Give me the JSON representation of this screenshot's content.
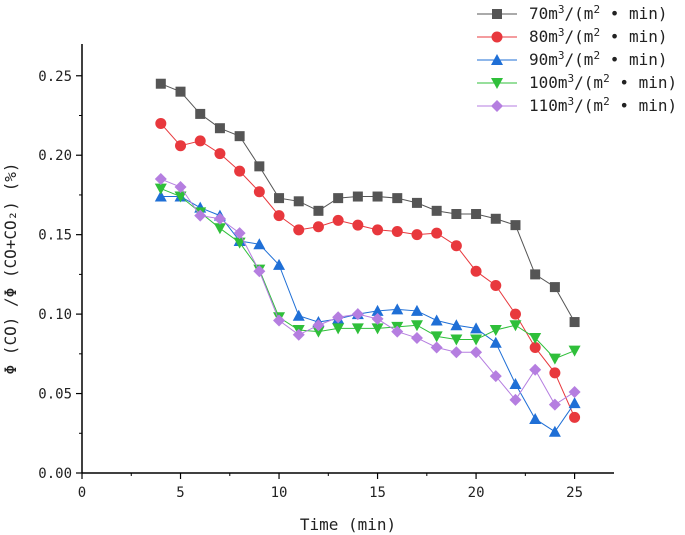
{
  "chart_data": {
    "type": "line",
    "title": "",
    "xlabel": "Time (min)",
    "ylabel": "Φ (CO) /Φ (CO+CO₂) (%)",
    "xlim": [
      0,
      27
    ],
    "ylim": [
      0,
      0.27
    ],
    "xticks": [
      0,
      5,
      10,
      15,
      20,
      25
    ],
    "xtick_labels": [
      "0",
      "5",
      "10",
      "15",
      "20",
      "25"
    ],
    "yticks": [
      0,
      0.05,
      0.1,
      0.15,
      0.2,
      0.25
    ],
    "ytick_labels": [
      "0.00",
      "0.05",
      "0.10",
      "0.15",
      "0.20",
      "0.25"
    ],
    "grid": false,
    "legend_position": "top-right",
    "x": [
      4,
      5,
      6,
      7,
      8,
      9,
      10,
      11,
      12,
      13,
      14,
      15,
      16,
      17,
      18,
      19,
      20,
      21,
      22,
      23,
      24,
      25
    ],
    "series": [
      {
        "name": "70m³/(m² • min)",
        "legend_base": "70m",
        "legend_sup1": "3",
        "legend_mid": "/(m",
        "legend_sup2": "2",
        "legend_tail": " • min)",
        "marker": "square",
        "color": "#555555",
        "values": [
          0.245,
          0.24,
          0.226,
          0.217,
          0.212,
          0.193,
          0.173,
          0.171,
          0.165,
          0.173,
          0.174,
          0.174,
          0.173,
          0.17,
          0.165,
          0.163,
          0.163,
          0.16,
          0.156,
          0.125,
          0.117,
          0.095
        ]
      },
      {
        "name": "80m³/(m² • min)",
        "legend_base": "80m",
        "legend_sup1": "3",
        "legend_mid": "/(m",
        "legend_sup2": "2",
        "legend_tail": " • min)",
        "marker": "circle",
        "color": "#e8383d",
        "values": [
          0.22,
          0.206,
          0.209,
          0.201,
          0.19,
          0.177,
          0.162,
          0.153,
          0.155,
          0.159,
          0.156,
          0.153,
          0.152,
          0.15,
          0.151,
          0.143,
          0.127,
          0.118,
          0.1,
          0.079,
          0.063,
          0.035
        ]
      },
      {
        "name": "90m³/(m² • min)",
        "legend_base": "90m",
        "legend_sup1": "3",
        "legend_mid": "/(m",
        "legend_sup2": "2",
        "legend_tail": " • min)",
        "marker": "triangle-up",
        "color": "#1f6fd6",
        "values": [
          0.174,
          0.174,
          0.167,
          0.162,
          0.146,
          0.144,
          0.131,
          0.099,
          0.095,
          0.097,
          0.1,
          0.102,
          0.103,
          0.102,
          0.096,
          0.093,
          0.091,
          0.082,
          0.056,
          0.034,
          0.026,
          0.044
        ]
      },
      {
        "name": "100m³/(m² • min)",
        "legend_base": "100m",
        "legend_sup1": "3",
        "legend_mid": "/(m",
        "legend_sup2": "2",
        "legend_tail": " • min)",
        "marker": "triangle-down",
        "color": "#2fbf3a",
        "values": [
          0.179,
          0.174,
          0.164,
          0.154,
          0.145,
          0.128,
          0.098,
          0.09,
          0.089,
          0.091,
          0.091,
          0.091,
          0.092,
          0.093,
          0.086,
          0.084,
          0.084,
          0.09,
          0.093,
          0.085,
          0.072,
          0.077
        ]
      },
      {
        "name": "110m³/(m² • min)",
        "legend_base": "110m",
        "legend_sup1": "3",
        "legend_mid": "/(m",
        "legend_sup2": "2",
        "legend_tail": " • min)",
        "marker": "diamond",
        "color": "#b57ee0",
        "values": [
          0.185,
          0.18,
          0.162,
          0.16,
          0.151,
          0.127,
          0.096,
          0.087,
          0.093,
          0.098,
          0.1,
          0.097,
          0.089,
          0.085,
          0.079,
          0.076,
          0.076,
          0.061,
          0.046,
          0.065,
          0.043,
          0.051
        ]
      }
    ]
  }
}
